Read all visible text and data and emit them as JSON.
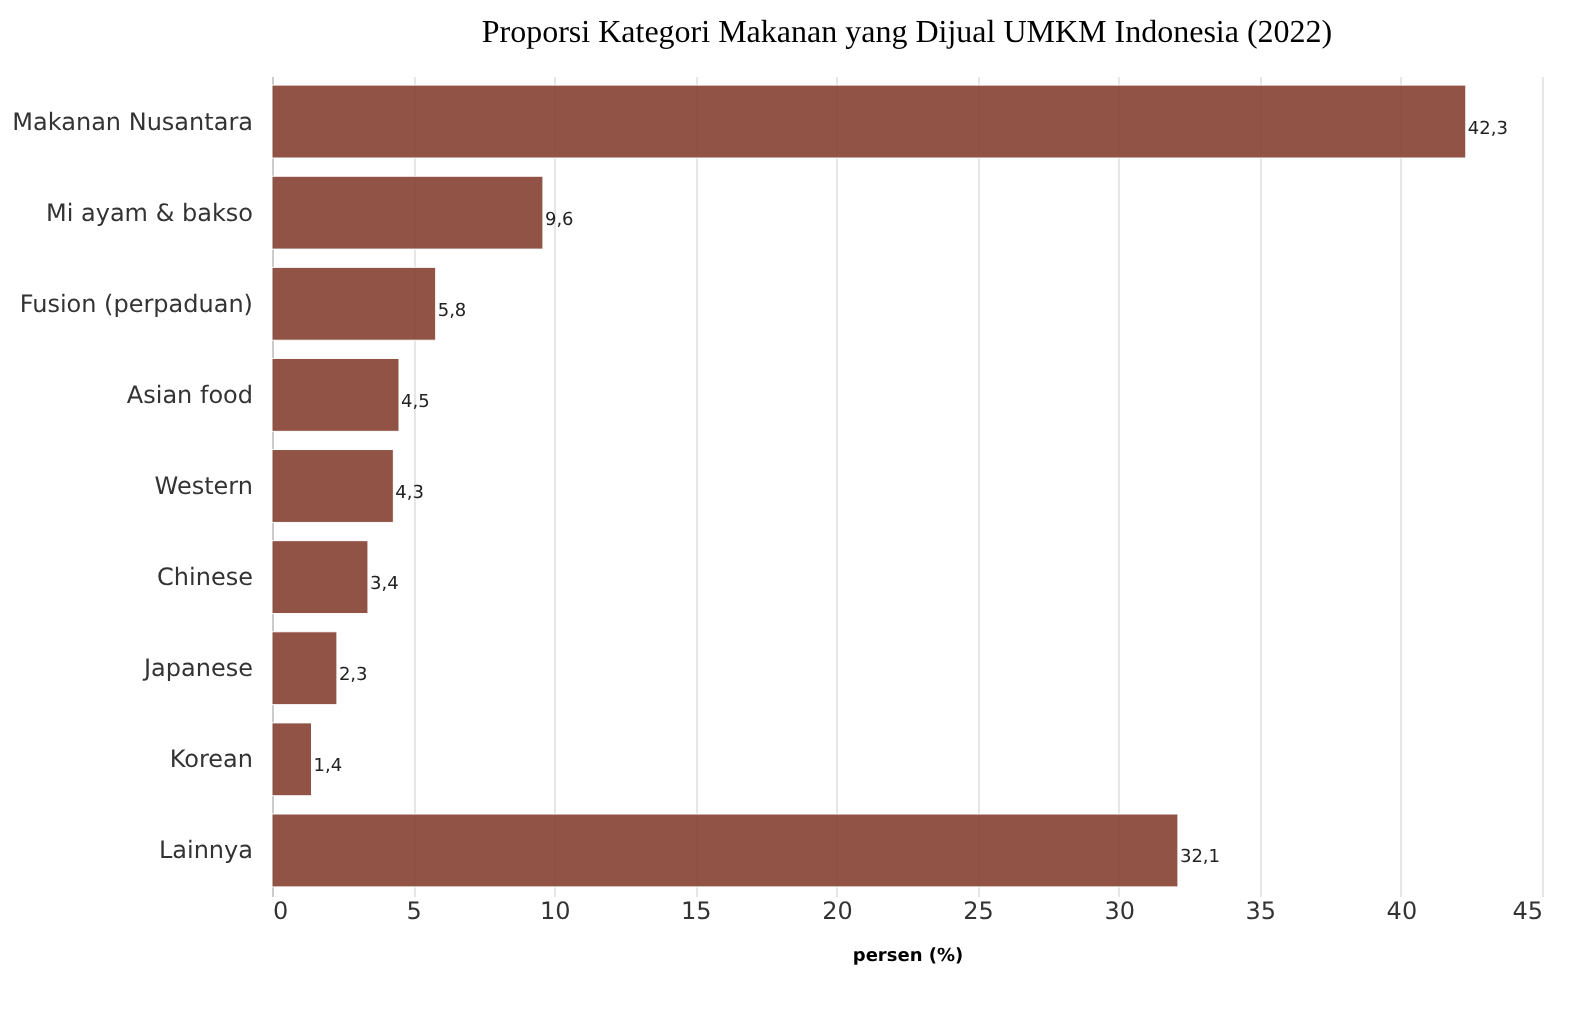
{
  "chart_data": {
    "type": "bar",
    "orientation": "horizontal",
    "title": "Proporsi Kategori Makanan yang Dijual UMKM Indonesia (2022)",
    "xlabel": "persen (%)",
    "categories": [
      "Makanan Nusantara",
      "Mi ayam & bakso",
      "Fusion (perpaduan)",
      "Asian food",
      "Western",
      "Chinese",
      "Japanese",
      "Korean",
      "Lainnya"
    ],
    "values": [
      42.3,
      9.6,
      5.8,
      4.5,
      4.3,
      3.4,
      2.3,
      1.4,
      32.1
    ],
    "value_labels": [
      "42,3",
      "9,6",
      "5,8",
      "4,5",
      "4,3",
      "3,4",
      "2,3",
      "1,4",
      "32,1"
    ],
    "color": "#8b4a3c",
    "xlim": [
      0,
      45
    ],
    "xticks": [
      0,
      5,
      10,
      15,
      20,
      25,
      30,
      35,
      40,
      45
    ],
    "grid": "x"
  }
}
